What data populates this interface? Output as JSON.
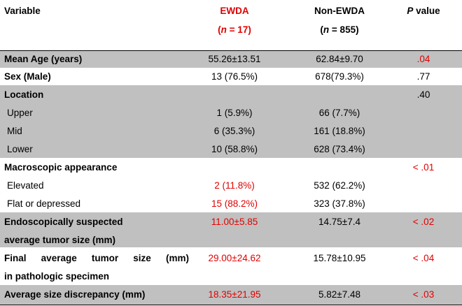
{
  "header": {
    "variable": "Variable",
    "ewda": "EWDA",
    "ewda_n": "(n = 17)",
    "nonewda": "Non-EWDA",
    "nonewda_n": "(n = 855)",
    "pvalue_p": "P",
    "pvalue_rest": " value"
  },
  "rows": {
    "mean_age": {
      "label": "Mean Age (years)",
      "ewda": "55.26±13.51",
      "non": "62.84±9.70",
      "p": ".04"
    },
    "sex": {
      "label": "Sex (Male)",
      "ewda": "13 (76.5%)",
      "non": "678(79.3%)",
      "p": ".77"
    },
    "location": {
      "label": "Location",
      "p": ".40"
    },
    "upper": {
      "label": "Upper",
      "ewda": "1 (5.9%)",
      "non": "66 (7.7%)"
    },
    "mid": {
      "label": "Mid",
      "ewda": "6 (35.3%)",
      "non": "161 (18.8%)"
    },
    "lower": {
      "label": "Lower",
      "ewda": "10 (58.8%)",
      "non": "628 (73.4%)"
    },
    "macro": {
      "label": "Macroscopic appearance",
      "p": "< .01"
    },
    "elevated": {
      "label": "Elevated",
      "ewda": "2 (11.8%)",
      "non": "532 (62.2%)"
    },
    "flat": {
      "label": "Flat or depressed",
      "ewda": "15 (88.2%)",
      "non": "323 (37.8%)"
    },
    "endo": {
      "label1": "Endoscopically suspected",
      "label2": "average tumor size (mm)",
      "ewda": "11.00±5.85",
      "non": "14.75±7.4",
      "p": "< .02"
    },
    "final": {
      "w1": "Final",
      "w2": "average",
      "w3": "tumor",
      "w4": "size",
      "w5": "(mm)",
      "label2": "in pathologic specimen",
      "ewda": "29.00±24.62",
      "non": "15.78±10.95",
      "p": "< .04"
    },
    "discrepancy": {
      "label": "Average size discrepancy (mm)",
      "ewda": "18.35±21.95",
      "non": "5.82±7.48",
      "p": "< .03"
    }
  },
  "colors": {
    "shade": "#c0c0c0",
    "highlight": "#e00000"
  }
}
